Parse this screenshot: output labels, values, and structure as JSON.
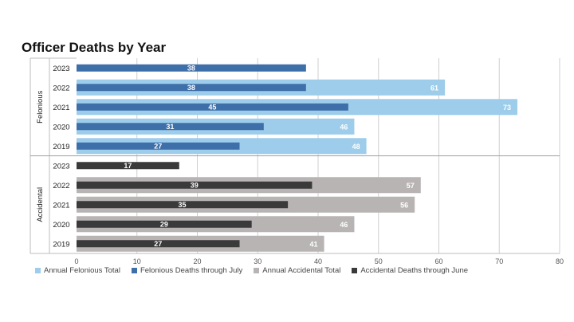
{
  "title": "Officer Deaths by Year",
  "colors": {
    "annual_felonious": "#9dcdea",
    "felonious_through_july": "#3f6fa8",
    "annual_accidental": "#b8b4b4",
    "accidental_through_june": "#3a3a3a"
  },
  "chart_data": {
    "type": "bar",
    "orientation": "horizontal",
    "title": "Officer Deaths by Year",
    "xlim": [
      0,
      80
    ],
    "x_ticks": [
      0,
      10,
      20,
      30,
      40,
      50,
      60,
      70,
      80
    ],
    "grid": true,
    "legend_position": "bottom",
    "groups": [
      {
        "name": "Felonious",
        "categories": [
          "2023",
          "2022",
          "2021",
          "2020",
          "2019"
        ],
        "series": [
          {
            "name": "Annual Felonious Total",
            "values": [
              null,
              61,
              73,
              46,
              48
            ]
          },
          {
            "name": "Felonious Deaths through July",
            "values": [
              38,
              38,
              45,
              31,
              27
            ]
          }
        ]
      },
      {
        "name": "Accidental",
        "categories": [
          "2023",
          "2022",
          "2021",
          "2020",
          "2019"
        ],
        "series": [
          {
            "name": "Annual Accidental Total",
            "values": [
              null,
              57,
              56,
              46,
              41
            ]
          },
          {
            "name": "Accidental Deaths through June",
            "values": [
              17,
              39,
              35,
              29,
              27
            ]
          }
        ]
      }
    ],
    "legend": [
      "Annual Felonious Total",
      "Felonious Deaths through July",
      "Annual Accidental Total",
      "Accidental Deaths through June"
    ]
  }
}
